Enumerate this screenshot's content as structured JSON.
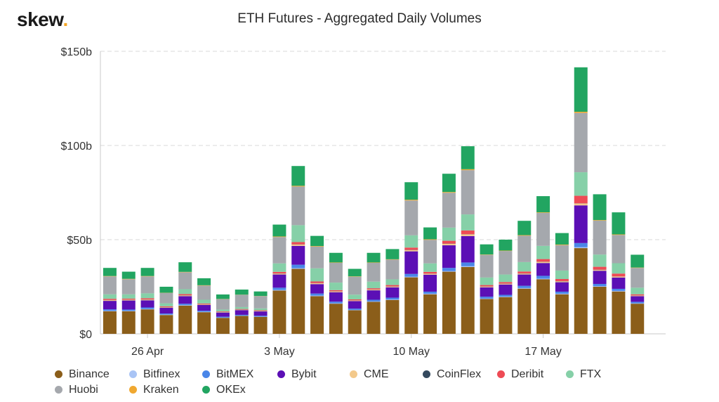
{
  "header": {
    "logo_text": "skew",
    "logo_dot": ".",
    "title": "ETH Futures - Aggregated Daily Volumes"
  },
  "chart_data": {
    "type": "bar",
    "stacked": true,
    "title": "ETH Futures - Aggregated Daily Volumes",
    "xlabel": "",
    "ylabel": "",
    "ylim": [
      0,
      150
    ],
    "y_ticks": [
      0,
      50,
      100,
      150
    ],
    "y_tick_labels": [
      "$0",
      "$50b",
      "$100b",
      "$150b"
    ],
    "x_tick_labels": [
      {
        "label": "26 Apr",
        "index": 2
      },
      {
        "label": "3 May",
        "index": 9
      },
      {
        "label": "10 May",
        "index": 16
      },
      {
        "label": "17 May",
        "index": 23
      }
    ],
    "grid": "horizontal-dashed",
    "legend_position": "bottom",
    "categories": [
      "24 Apr",
      "25 Apr",
      "26 Apr",
      "27 Apr",
      "28 Apr",
      "29 Apr",
      "30 Apr",
      "1 May",
      "2 May",
      "3 May",
      "4 May",
      "5 May",
      "6 May",
      "7 May",
      "8 May",
      "9 May",
      "10 May",
      "11 May",
      "12 May",
      "13 May",
      "14 May",
      "15 May",
      "16 May",
      "17 May",
      "18 May",
      "19 May",
      "20 May",
      "21 May",
      "22 May",
      "23 May"
    ],
    "series": [
      {
        "name": "Binance",
        "color": "#8b5e1a",
        "values": [
          12,
          12,
          13,
          10,
          15,
          11.5,
          8.5,
          9.5,
          9,
          23,
          34.5,
          20,
          16,
          12.5,
          17,
          18,
          30,
          21,
          33,
          35.5,
          18.5,
          19.5,
          24,
          29,
          21,
          45.5,
          25,
          22.5,
          16,
          0
        ]
      },
      {
        "name": "Bitfinex",
        "color": "#a9c4f5",
        "values": [
          0.2,
          0.2,
          0.2,
          0.2,
          0.2,
          0.2,
          0.1,
          0.1,
          0.1,
          0.3,
          0.4,
          0.3,
          0.2,
          0.2,
          0.2,
          0.2,
          0.3,
          0.3,
          0.3,
          0.4,
          0.2,
          0.2,
          0.3,
          0.3,
          0.3,
          0.5,
          0.3,
          0.3,
          0.2,
          0
        ]
      },
      {
        "name": "BitMEX",
        "color": "#4a86e8",
        "values": [
          0.8,
          0.7,
          0.8,
          0.6,
          0.8,
          0.6,
          0.5,
          0.5,
          0.5,
          1.2,
          1.8,
          1.1,
          0.9,
          0.7,
          0.9,
          1,
          1.5,
          1.1,
          1.7,
          2,
          1,
          1,
          1.2,
          1.5,
          1.1,
          2.2,
          1.2,
          1.1,
          0.8,
          0
        ]
      },
      {
        "name": "Bybit",
        "color": "#5b0fb5",
        "values": [
          4.5,
          4.8,
          3.8,
          3,
          4,
          3,
          2.2,
          2.5,
          2.3,
          7,
          10,
          5,
          5,
          4,
          5,
          5.5,
          12,
          9,
          12,
          14,
          5,
          5.5,
          6,
          6.8,
          5,
          20,
          7,
          6,
          3,
          0
        ]
      },
      {
        "name": "CME",
        "color": "#f3c98b",
        "values": [
          0.4,
          0.4,
          0.4,
          0.3,
          0.4,
          0.3,
          0.2,
          0.2,
          0.2,
          0.5,
          0.7,
          0.5,
          0.4,
          0.3,
          0.4,
          0.4,
          0.7,
          0.5,
          0.8,
          0.9,
          0.4,
          0.4,
          0.5,
          0.6,
          0.5,
          1,
          0.5,
          0.5,
          0.3,
          0
        ]
      },
      {
        "name": "CoinFlex",
        "color": "#34495e",
        "values": [
          0.1,
          0.1,
          0.1,
          0.1,
          0.1,
          0.1,
          0.1,
          0.1,
          0.1,
          0.1,
          0.1,
          0.1,
          0.1,
          0.1,
          0.1,
          0.1,
          0.1,
          0.1,
          0.1,
          0.1,
          0.1,
          0.1,
          0.1,
          0.1,
          0.1,
          0.1,
          0.1,
          0.1,
          0.1,
          0
        ]
      },
      {
        "name": "Deribit",
        "color": "#ee4b55",
        "values": [
          0.6,
          0.5,
          0.6,
          0.4,
          0.6,
          0.4,
          0.3,
          0.3,
          0.3,
          0.8,
          1.2,
          0.8,
          0.6,
          0.5,
          0.6,
          0.7,
          1.2,
          0.9,
          1.5,
          2,
          0.7,
          0.8,
          1,
          1.4,
          1.1,
          4,
          1.5,
          1.5,
          0.6,
          0
        ]
      },
      {
        "name": "FTX",
        "color": "#86d0a8",
        "values": [
          2.4,
          2.3,
          2.6,
          1.6,
          2.6,
          2,
          1,
          1,
          1,
          4.5,
          9,
          7,
          4,
          2.5,
          3.5,
          3,
          6.5,
          4.5,
          7,
          8.5,
          4,
          4,
          5,
          7,
          4.5,
          12.5,
          6.5,
          5.5,
          3.5,
          0
        ]
      },
      {
        "name": "Huobi",
        "color": "#a5a8ad",
        "values": [
          9.5,
          8,
          9,
          5.5,
          9,
          7.5,
          5.5,
          6.5,
          6.5,
          14,
          20.5,
          11.5,
          10.5,
          9.5,
          10,
          10.5,
          18.5,
          12.5,
          18.5,
          23.5,
          12,
          12.5,
          14,
          17.5,
          13.5,
          31.5,
          18,
          15,
          10.5,
          0
        ]
      },
      {
        "name": "Kraken",
        "color": "#f0a830",
        "values": [
          0.2,
          0.2,
          0.2,
          0.1,
          0.2,
          0.2,
          0.1,
          0.1,
          0.1,
          0.3,
          0.4,
          0.3,
          0.2,
          0.2,
          0.2,
          0.2,
          0.4,
          0.3,
          0.4,
          0.5,
          0.2,
          0.2,
          0.3,
          0.3,
          0.3,
          0.6,
          0.3,
          0.3,
          0.2,
          0
        ]
      },
      {
        "name": "OKEx",
        "color": "#22a561",
        "values": [
          4.3,
          3.8,
          4.3,
          3.2,
          5.1,
          3.7,
          2.4,
          2.7,
          2.4,
          6.3,
          10.5,
          5.4,
          5.1,
          4,
          5.1,
          5.4,
          9.3,
          6.3,
          9.7,
          12.2,
          5.4,
          5.8,
          7.6,
          8.6,
          6.1,
          23.6,
          13.7,
          11.7,
          6.8,
          0
        ]
      }
    ]
  }
}
